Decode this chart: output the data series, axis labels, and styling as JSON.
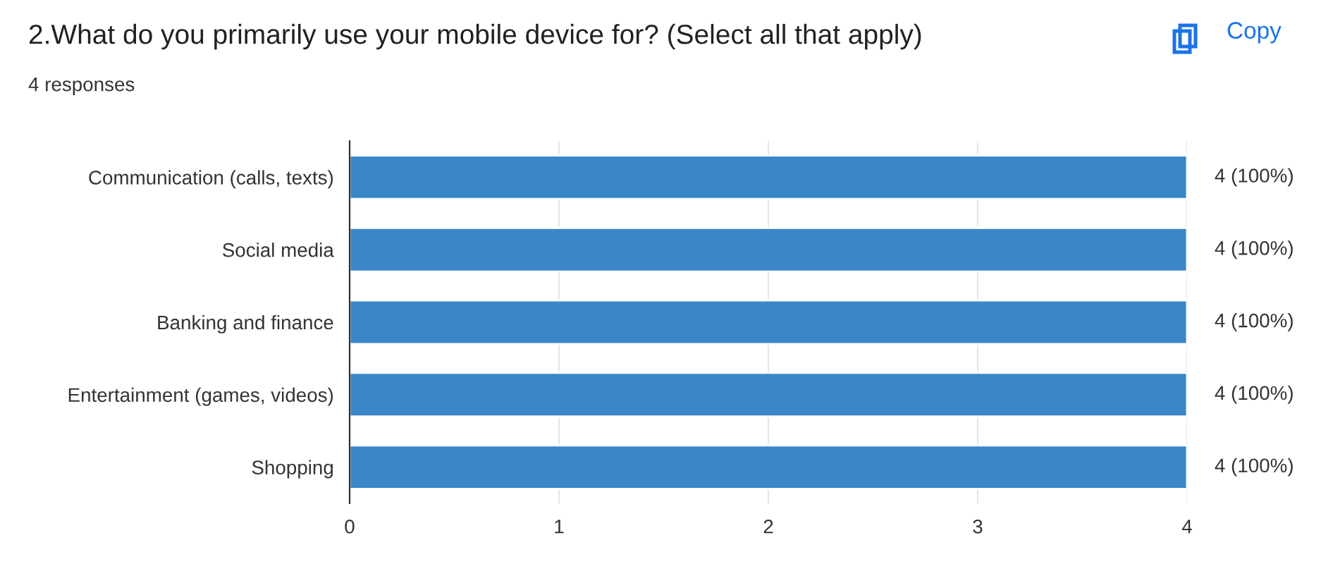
{
  "chart_data": {
    "type": "bar",
    "orientation": "horizontal",
    "title": "2.What do you primarily use your mobile device for? (Select all that apply)",
    "subtitle": "4 responses",
    "annotations": [
      "Copy"
    ],
    "categories": [
      "Communication (calls, texts)",
      "Social media",
      "Banking and finance",
      "Entertainment (games, videos)",
      "Shopping"
    ],
    "values": [
      4,
      4,
      4,
      4,
      4
    ],
    "color": "#3a86c8",
    "value_labels": [
      "4 (100%)",
      "4 (100%)",
      "4 (100%)",
      "4 (100%)",
      "4 (100%)"
    ],
    "xlim": [
      0,
      4
    ],
    "xticks": [
      0,
      1,
      2,
      3,
      4
    ],
    "grid": "x"
  }
}
